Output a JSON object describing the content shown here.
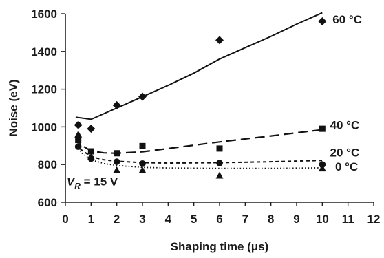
{
  "chart_data": {
    "type": "scatter",
    "xlabel": "Shaping time (μs)",
    "ylabel": "Noise (eV)",
    "xlim": [
      0,
      12
    ],
    "ylim": [
      600,
      1600
    ],
    "xticks": [
      "0",
      "1",
      "2",
      "3",
      "4",
      "5",
      "6",
      "7",
      "8",
      "9",
      "10",
      "11",
      "12"
    ],
    "yticks": [
      "600",
      "800",
      "1000",
      "1200",
      "1400",
      "1600"
    ],
    "annotation": {
      "prefix": "V",
      "subscript": "R",
      "suffix": " = 15 V"
    },
    "series": [
      {
        "name": "60 °C",
        "marker": "diamond",
        "line_style": "solid",
        "x": [
          0.5,
          1,
          2,
          3,
          6,
          10
        ],
        "y": [
          1010,
          990,
          1115,
          1160,
          1460,
          1560
        ],
        "fit_x": [
          0.4,
          1,
          2,
          3,
          4,
          5,
          6,
          7,
          8,
          9,
          10
        ],
        "fit_y": [
          1052,
          1040,
          1100,
          1160,
          1220,
          1285,
          1360,
          1420,
          1480,
          1545,
          1605
        ]
      },
      {
        "name": "40 °C",
        "marker": "square",
        "line_style": "dashed",
        "x": [
          0.5,
          1,
          2,
          3,
          6,
          10
        ],
        "y": [
          930,
          870,
          860,
          898,
          885,
          990
        ],
        "fit_x": [
          0.4,
          0.6,
          1,
          1.5,
          2,
          3,
          4,
          6,
          8,
          10
        ],
        "fit_y": [
          955,
          905,
          872,
          862,
          860,
          868,
          885,
          920,
          952,
          985
        ]
      },
      {
        "name": "20 °C",
        "marker": "circle",
        "line_style": "short-dashed",
        "x": [
          0.5,
          1,
          2,
          3,
          6,
          10
        ],
        "y": [
          895,
          832,
          815,
          805,
          808,
          800
        ],
        "fit_x": [
          0.4,
          0.6,
          1,
          1.5,
          2,
          3,
          4,
          6,
          8,
          10
        ],
        "fit_y": [
          945,
          880,
          842,
          825,
          818,
          810,
          808,
          810,
          815,
          822
        ]
      },
      {
        "name": "0 °C",
        "marker": "triangle",
        "line_style": "dotted",
        "x": [
          0.5,
          1,
          2,
          3,
          6,
          10
        ],
        "y": [
          960,
          840,
          770,
          770,
          742,
          780
        ],
        "fit_x": [
          0.4,
          0.6,
          1,
          1.5,
          2,
          3,
          4,
          6,
          8,
          10
        ],
        "fit_y": [
          935,
          865,
          825,
          805,
          795,
          785,
          782,
          780,
          780,
          783
        ]
      }
    ]
  }
}
